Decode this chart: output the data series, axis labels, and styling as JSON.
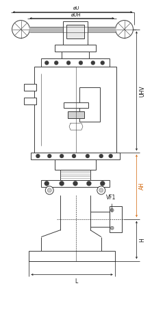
{
  "bg_color": "#ffffff",
  "line_color": "#3a3a3a",
  "dim_color": "#111111",
  "orange_color": "#d06000",
  "gray_color": "#aaaaaa",
  "fig_width": 2.22,
  "fig_height": 4.51,
  "dpi": 100,
  "labels": {
    "oU": "øU",
    "oUH": "øUH",
    "UHV": "UHV",
    "AH": "AH",
    "H": "H",
    "L": "L",
    "VF1": "VF1"
  }
}
